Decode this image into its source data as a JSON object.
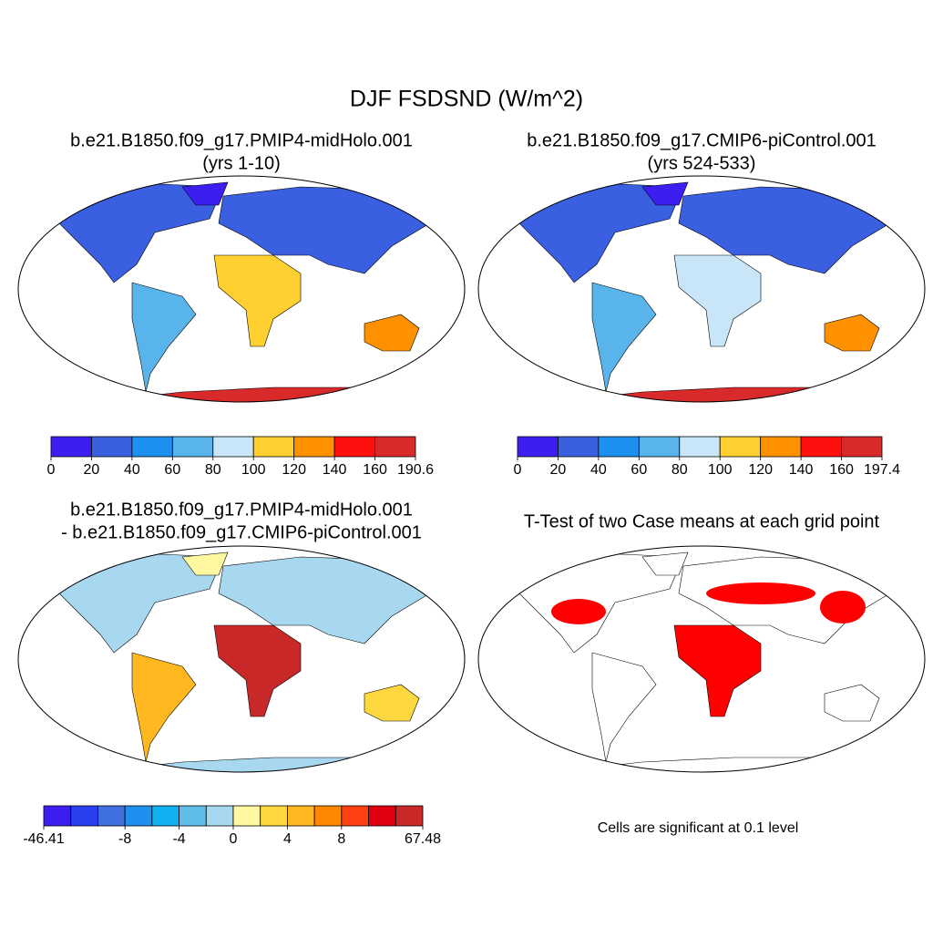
{
  "title": "DJF FSDSND (W/m^2)",
  "panels": [
    {
      "title": [
        "b.e21.B1850.f09_g17.PMIP4-midHolo.001",
        "(yrs 1-10)"
      ],
      "colorbar": {
        "colors": [
          "#3c1ff0",
          "#3a5fe0",
          "#1e90f0",
          "#5ab4ec",
          "#c8e6f8",
          "#ffd030",
          "#ff9000",
          "#ff1010",
          "#d82a2a"
        ],
        "labels": [
          0,
          20,
          40,
          60,
          80,
          100,
          120,
          140,
          160,
          190.6
        ]
      }
    },
    {
      "title": [
        "b.e21.B1850.f09_g17.CMIP6-piControl.001",
        "(yrs 524-533)"
      ],
      "colorbar": {
        "colors": [
          "#3c1ff0",
          "#3a5fe0",
          "#1e90f0",
          "#5ab4ec",
          "#c8e6f8",
          "#ffd030",
          "#ff9000",
          "#ff1010",
          "#d82a2a"
        ],
        "labels": [
          0,
          20,
          40,
          60,
          80,
          100,
          120,
          140,
          160,
          197.4
        ]
      }
    },
    {
      "title": [
        "b.e21.B1850.f09_g17.PMIP4-midHolo.001",
        "- b.e21.B1850.f09_g17.CMIP6-piControl.001"
      ],
      "colorbar": {
        "colors": [
          "#3c1ff0",
          "#2a40f0",
          "#4070e0",
          "#2090f0",
          "#10b0f0",
          "#60bce8",
          "#a8d8f0",
          "#fff8a0",
          "#ffd840",
          "#ffb820",
          "#ff8800",
          "#ff4010",
          "#e00010",
          "#c82828"
        ],
        "labels": [
          -46.41,
          null,
          null,
          -8,
          null,
          -4,
          null,
          0,
          null,
          4,
          null,
          8,
          null,
          null,
          67.48
        ]
      }
    },
    {
      "title": [
        "T-Test of two Case means at each grid point"
      ],
      "note": "Cells are significant at 0.1 level"
    }
  ]
}
